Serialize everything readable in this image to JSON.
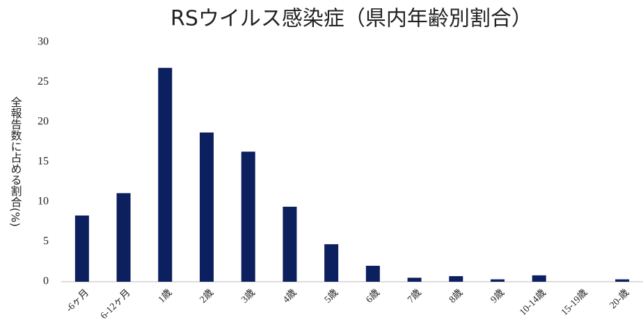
{
  "chart_data": {
    "type": "bar",
    "title": "RSウイルス感染症（県内年齢別割合）",
    "y_label": "全報告数に占める割合(%)",
    "categories": [
      "-6ヶ月",
      "6-12ヶ月",
      "1歳",
      "2歳",
      "3歳",
      "4歳",
      "5歳",
      "6歳",
      "7歳",
      "8歳",
      "9歳",
      "10-14歳",
      "15-19歳",
      "20-歳"
    ],
    "values": [
      8.3,
      11.1,
      26.8,
      18.7,
      16.3,
      9.4,
      4.7,
      2.0,
      0.5,
      0.7,
      0.3,
      0.8,
      0,
      0.3
    ],
    "color": "#0c1f5e",
    "ylim": [
      0,
      30
    ],
    "yticks": [
      0,
      5,
      10,
      15,
      20,
      25,
      30
    ],
    "grid": false
  }
}
